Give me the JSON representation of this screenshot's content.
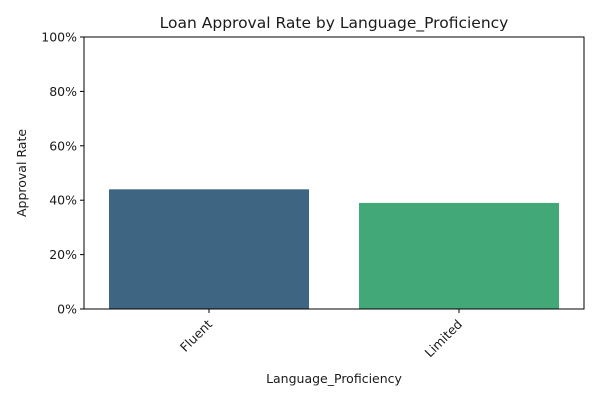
{
  "chart_data": {
    "type": "bar",
    "title": "Loan Approval Rate by Language_Proficiency",
    "xlabel": "Language_Proficiency",
    "ylabel": "Approval Rate",
    "categories": [
      "Fluent",
      "Limited"
    ],
    "values": [
      0.44,
      0.39
    ],
    "ylim": [
      0,
      1
    ],
    "yticks": [
      0,
      0.2,
      0.4,
      0.6,
      0.8,
      1.0
    ],
    "ytick_labels": [
      "0%",
      "20%",
      "40%",
      "60%",
      "80%",
      "100%"
    ],
    "bar_colors": [
      "#3e6582",
      "#43a877"
    ],
    "grid": false,
    "legend": "none"
  }
}
